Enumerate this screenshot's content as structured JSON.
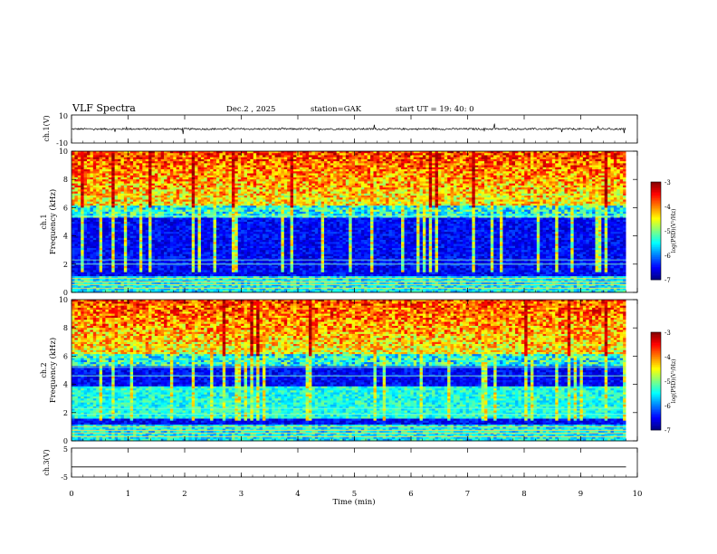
{
  "header": {
    "title": "VLF  Spectra",
    "date": "Dec.2  , 2025",
    "station": "station=GAK",
    "start_ut": "start  UT  =   19: 40: 0"
  },
  "chart_data": [
    {
      "type": "line",
      "name": "ch1-waveform",
      "ylabel": "ch.1(V)",
      "ylim": [
        -10,
        10
      ],
      "ytick_labels": [
        "10",
        "-10"
      ],
      "baseline": 0,
      "description_values": {
        "mean": 0,
        "spike_max": 3.5,
        "spike_min": -3.5
      }
    },
    {
      "type": "heatmap",
      "name": "ch1-spectrogram",
      "ylabel_channel": "ch.1",
      "ylabel": "Frequency  (kHz)",
      "ylim": [
        0,
        10
      ],
      "ytick_labels": [
        "0",
        "2",
        "4",
        "6",
        "8",
        "10"
      ],
      "colorbar": {
        "label": "log(PSD)(V²/Hz)",
        "range": [
          -7,
          -3
        ],
        "tick_labels": [
          "-3",
          "-4",
          "-5",
          "-6",
          "-7"
        ]
      }
    },
    {
      "type": "heatmap",
      "name": "ch2-spectrogram",
      "ylabel_channel": "ch.2",
      "ylabel": "Frequency  (kHz)",
      "ylim": [
        0,
        10
      ],
      "ytick_labels": [
        "0",
        "2",
        "4",
        "6",
        "8",
        "10"
      ],
      "colorbar": {
        "label": "log(PSD)(V²/Hz)",
        "range": [
          -7,
          -3
        ],
        "tick_labels": [
          "-3",
          "-4",
          "-5",
          "-6",
          "-7"
        ]
      }
    },
    {
      "type": "line",
      "name": "ch3-waveform",
      "ylabel": "ch.3(V)",
      "ylim": [
        -5,
        5
      ],
      "ytick_labels": [
        "5",
        "-5"
      ],
      "constant_value": -1.5
    }
  ],
  "xaxis": {
    "label": "Time  (min)",
    "xlim": [
      0,
      10
    ],
    "data_end": 9.8,
    "tick_labels": [
      "0",
      "1",
      "2",
      "3",
      "4",
      "5",
      "6",
      "7",
      "8",
      "9",
      "10"
    ]
  }
}
